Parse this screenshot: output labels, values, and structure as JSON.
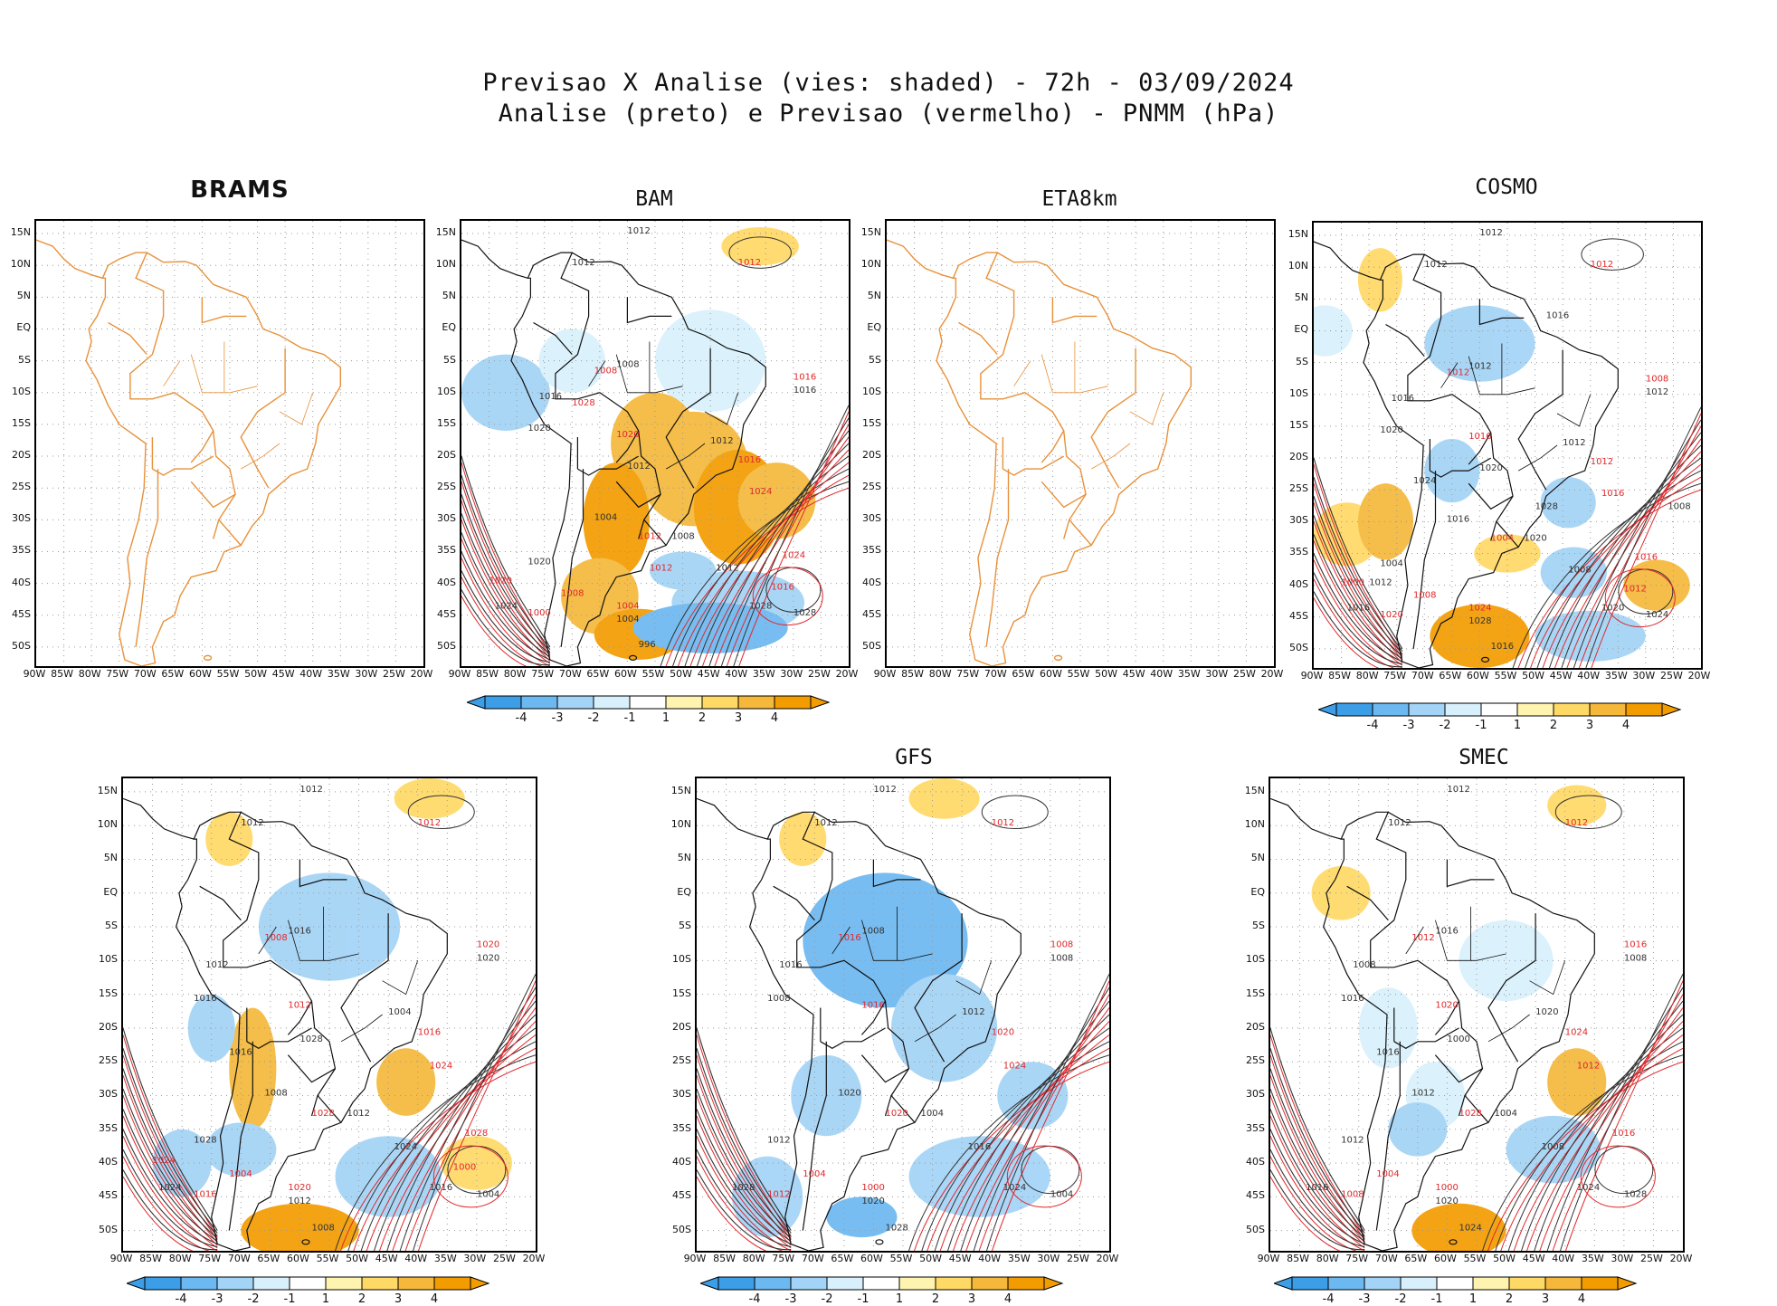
{
  "header": {
    "title_line1": "Previsao X Analise (vies: shaded) - 72h - 03/09/2024",
    "title_line2": "Analise (preto) e Previsao (vermelho) - PNMM (hPa)"
  },
  "axes": {
    "lat_labels": [
      "15N",
      "10N",
      "5N",
      "EQ",
      "5S",
      "10S",
      "15S",
      "20S",
      "25S",
      "30S",
      "35S",
      "40S",
      "45S",
      "50S"
    ],
    "lon_labels": [
      "90W",
      "85W",
      "80W",
      "75W",
      "70W",
      "65W",
      "60W",
      "55W",
      "50W",
      "45W",
      "40W",
      "35W",
      "30W",
      "25W",
      "20W"
    ]
  },
  "colorbar": {
    "labels": [
      "-4",
      "-3",
      "-2",
      "-1",
      "1",
      "2",
      "3",
      "4"
    ],
    "colors": [
      "#3d9ee8",
      "#6cb8f0",
      "#a3d3f6",
      "#d8f0fb",
      "#ffffff",
      "#fff3b0",
      "#ffd966",
      "#f5b83a",
      "#f29c00"
    ]
  },
  "colors": {
    "coast": "#e8913a",
    "analysis": "#333333",
    "forecast": "#e0282c",
    "grid": "#9a9a9a"
  },
  "panels": [
    {
      "id": "brams",
      "title": "BRAMS",
      "has_data": false,
      "colorbar": false,
      "labels_black": [],
      "labels_red": []
    },
    {
      "id": "bam",
      "title": "BAM",
      "has_data": true,
      "colorbar": true,
      "labels_black": [
        "1012",
        "1012",
        "1008",
        "1016",
        "1020",
        "1012",
        "1004",
        "1008",
        "1012",
        "1020",
        "1024",
        "1028",
        "1028",
        "1004",
        "996",
        "1016",
        "1012"
      ],
      "labels_red": [
        "1012",
        "1008",
        "1016",
        "1020",
        "1016",
        "1024",
        "1012",
        "1008",
        "1004",
        "1000",
        "1024",
        "1020",
        "1016",
        "1012",
        "1028"
      ]
    },
    {
      "id": "eta8km",
      "title": "ETA8km",
      "has_data": false,
      "colorbar": false,
      "labels_black": [],
      "labels_red": []
    },
    {
      "id": "cosmo",
      "title": "COSMO",
      "has_data": true,
      "colorbar": true,
      "labels_black": [
        "1012",
        "1012",
        "1012",
        "1016",
        "1020",
        "1012",
        "1016",
        "1020",
        "1008",
        "1004",
        "1016",
        "1020",
        "1024",
        "1028",
        "1016",
        "1012",
        "1020",
        "1024",
        "1028",
        "1008",
        "1012",
        "1016"
      ],
      "labels_red": [
        "1012",
        "1012",
        "1008",
        "1016",
        "1012",
        "1016",
        "1004",
        "1008",
        "1024",
        "1020",
        "1016",
        "1000",
        "1012"
      ]
    },
    {
      "id": "fourth",
      "title": "",
      "has_data": true,
      "colorbar": true,
      "labels_black": [
        "1012",
        "1012",
        "1016",
        "1012",
        "1016",
        "1004",
        "1008",
        "1012",
        "1024",
        "1028",
        "1024",
        "1016",
        "1004",
        "1012",
        "1008",
        "1020",
        "1028",
        "1016"
      ],
      "labels_red": [
        "1012",
        "1008",
        "1020",
        "1012",
        "1016",
        "1024",
        "1028",
        "1004",
        "1020",
        "1016",
        "1028",
        "1024",
        "1000"
      ]
    },
    {
      "id": "gfs",
      "title": "GFS",
      "has_data": true,
      "colorbar": true,
      "labels_black": [
        "1012",
        "1012",
        "1008",
        "1016",
        "1008",
        "1012",
        "1020",
        "1004",
        "1016",
        "1012",
        "1028",
        "1024",
        "1004",
        "1020",
        "1028",
        "1008"
      ],
      "labels_red": [
        "1012",
        "1016",
        "1008",
        "1016",
        "1020",
        "1024",
        "1020",
        "1004",
        "1000",
        "1012"
      ]
    },
    {
      "id": "smec",
      "title": "SMEC",
      "has_data": true,
      "colorbar": true,
      "labels_black": [
        "1012",
        "1012",
        "1016",
        "1008",
        "1016",
        "1020",
        "1012",
        "1004",
        "1008",
        "1012",
        "1016",
        "1024",
        "1028",
        "1020",
        "1024",
        "1008",
        "1000",
        "1016"
      ],
      "labels_red": [
        "1012",
        "1012",
        "1016",
        "1020",
        "1024",
        "1012",
        "1028",
        "1004",
        "1000",
        "1008",
        "1016"
      ]
    }
  ]
}
